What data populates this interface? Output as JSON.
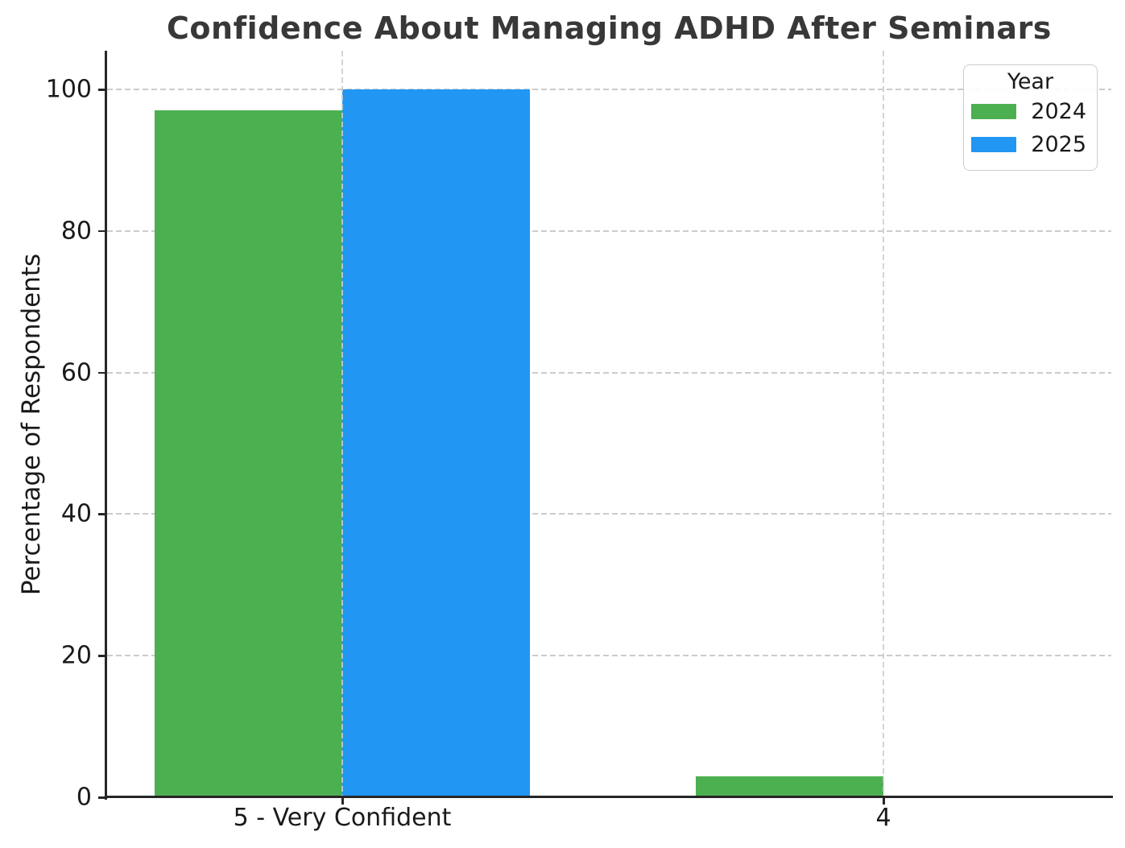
{
  "title": "Confidence About Managing ADHD After Seminars",
  "ylabel": "Percentage of Respondents",
  "legend": {
    "title": "Year",
    "entries": [
      {
        "label": "2024",
        "color": "#4caf50"
      },
      {
        "label": "2025",
        "color": "#2196f3"
      }
    ]
  },
  "colors": {
    "bar_2024": "#4caf50",
    "bar_2025": "#2196f3",
    "grid": "#cccccc",
    "axis": "#262626",
    "title_text": "#383838",
    "tick_text": "#1a1a1a"
  },
  "chart_data": {
    "type": "bar",
    "categories": [
      "5 - Very Confident",
      "4"
    ],
    "series": [
      {
        "name": "2024",
        "color": "#4caf50",
        "values": [
          97,
          3
        ]
      },
      {
        "name": "2025",
        "color": "#2196f3",
        "values": [
          100,
          0
        ]
      }
    ],
    "title": "Confidence About Managing ADHD After Seminars",
    "xlabel": "",
    "ylabel": "Percentage of Respondents",
    "ylim": [
      0,
      100
    ],
    "yticks": [
      0,
      20,
      40,
      60,
      80,
      100
    ],
    "grid": true,
    "grid_style": "dashed",
    "legend_title": "Year",
    "legend_position": "upper right"
  }
}
